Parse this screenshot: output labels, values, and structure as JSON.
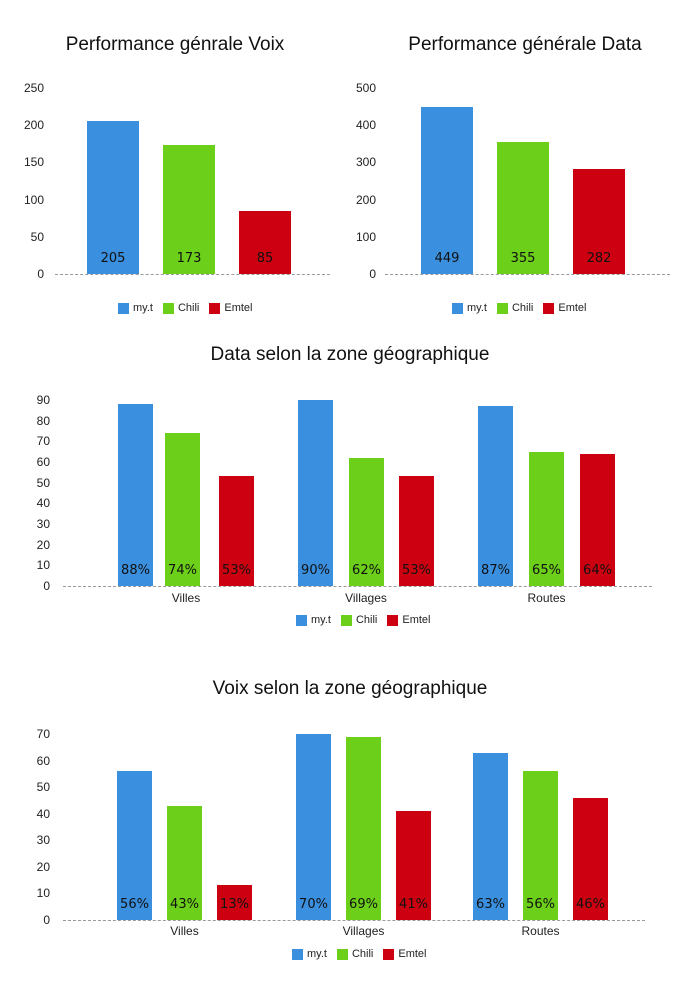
{
  "colors": {
    "my.t": "#3a8fde",
    "Chili": "#6ccf1a",
    "Emtel": "#cc0010"
  },
  "legend": [
    "my.t",
    "Chili",
    "Emtel"
  ],
  "chart_data": [
    {
      "type": "bar",
      "title": "Performance génrale Voix",
      "categories": [
        "my.t",
        "Chili",
        "Emtel"
      ],
      "values": [
        205,
        173,
        85
      ],
      "value_labels": [
        "205",
        "173",
        "85"
      ],
      "yticks": [
        0,
        50,
        100,
        150,
        200,
        250
      ],
      "ylim": [
        0,
        250
      ],
      "legend": [
        "my.t",
        "Chili",
        "Emtel"
      ],
      "legend_position": "bottom",
      "grid": false
    },
    {
      "type": "bar",
      "title": "Performance générale Data",
      "categories": [
        "my.t",
        "Chili",
        "Emtel"
      ],
      "values": [
        449,
        355,
        282
      ],
      "value_labels": [
        "449",
        "355",
        "282"
      ],
      "yticks": [
        0,
        100,
        200,
        300,
        400,
        500
      ],
      "ylim": [
        0,
        500
      ],
      "legend": [
        "my.t",
        "Chili",
        "Emtel"
      ],
      "legend_position": "bottom",
      "grid": false
    },
    {
      "type": "bar",
      "title": "Data selon la zone géographique",
      "categories": [
        "Villes",
        "Villages",
        "Routes"
      ],
      "series": [
        {
          "name": "my.t",
          "values": [
            88,
            90,
            87
          ],
          "labels": [
            "88%",
            "90%",
            "87%"
          ]
        },
        {
          "name": "Chili",
          "values": [
            74,
            62,
            65
          ],
          "labels": [
            "74%",
            "62%",
            "65%"
          ]
        },
        {
          "name": "Emtel",
          "values": [
            53,
            53,
            64
          ],
          "labels": [
            "53%",
            "53%",
            "64%"
          ]
        }
      ],
      "yticks": [
        0,
        10,
        20,
        30,
        40,
        50,
        60,
        70,
        80,
        90
      ],
      "ylim": [
        0,
        90
      ],
      "legend_position": "bottom",
      "grid": false
    },
    {
      "type": "bar",
      "title": "Voix selon la zone géographique",
      "categories": [
        "Villes",
        "Villages",
        "Routes"
      ],
      "series": [
        {
          "name": "my.t",
          "values": [
            56,
            70,
            63
          ],
          "labels": [
            "56%",
            "70%",
            "63%"
          ]
        },
        {
          "name": "Chili",
          "values": [
            43,
            69,
            56
          ],
          "labels": [
            "43%",
            "69%",
            "56%"
          ]
        },
        {
          "name": "Emtel",
          "values": [
            13,
            41,
            46
          ],
          "labels": [
            "13%",
            "41%",
            "46%"
          ]
        }
      ],
      "yticks": [
        0,
        10,
        20,
        30,
        40,
        50,
        60,
        70
      ],
      "ylim": [
        0,
        70
      ],
      "legend_position": "bottom",
      "grid": false
    }
  ]
}
